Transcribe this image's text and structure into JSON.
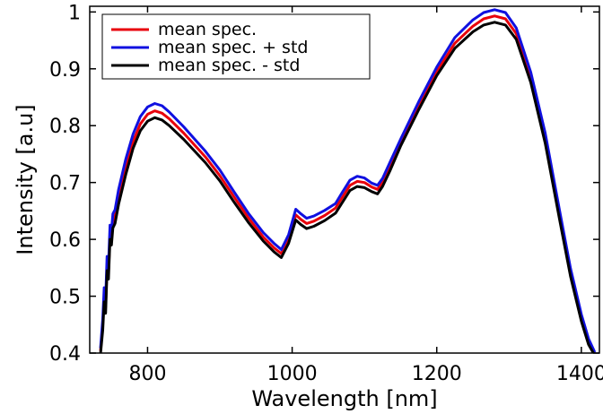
{
  "chart_data": {
    "type": "line",
    "title": "",
    "xlabel": "Wavelength [nm]",
    "ylabel": "Intensity [a.u]",
    "xlim": [
      720,
      1425
    ],
    "ylim": [
      0.4,
      1.01
    ],
    "xticks": [
      800,
      1000,
      1200,
      1400
    ],
    "xtick_labels": [
      "800",
      "1000",
      "1200",
      "1400"
    ],
    "yticks": [
      0.4,
      0.5,
      0.6,
      0.7,
      0.8,
      0.9,
      1.0
    ],
    "ytick_labels": [
      "0.4",
      "0.5",
      "0.6",
      "0.7",
      "0.8",
      "0.9",
      "1"
    ],
    "grid": false,
    "legend_position": "top-left",
    "x": [
      735,
      738,
      740,
      742,
      744,
      746,
      748,
      750,
      752,
      755,
      760,
      770,
      780,
      790,
      800,
      810,
      820,
      830,
      850,
      880,
      900,
      920,
      940,
      960,
      975,
      985,
      995,
      1005,
      1012,
      1020,
      1030,
      1045,
      1060,
      1070,
      1080,
      1090,
      1100,
      1110,
      1118,
      1125,
      1135,
      1150,
      1175,
      1200,
      1225,
      1250,
      1265,
      1280,
      1295,
      1310,
      1330,
      1350,
      1370,
      1385,
      1400,
      1410,
      1418
    ],
    "series": [
      {
        "name": "mean spec.",
        "color": "#e8000b",
        "values": [
          0.405,
          0.45,
          0.5,
          0.48,
          0.555,
          0.54,
          0.61,
          0.6,
          0.63,
          0.64,
          0.675,
          0.728,
          0.772,
          0.803,
          0.82,
          0.826,
          0.822,
          0.812,
          0.787,
          0.745,
          0.712,
          0.674,
          0.637,
          0.604,
          0.585,
          0.575,
          0.6,
          0.643,
          0.635,
          0.628,
          0.632,
          0.642,
          0.655,
          0.675,
          0.695,
          0.702,
          0.7,
          0.692,
          0.688,
          0.7,
          0.728,
          0.77,
          0.835,
          0.895,
          0.945,
          0.975,
          0.988,
          0.993,
          0.988,
          0.962,
          0.885,
          0.778,
          0.642,
          0.542,
          0.462,
          0.42,
          0.4
        ]
      },
      {
        "name": "mean spec. + std",
        "color": "#1010e0",
        "values": [
          0.41,
          0.46,
          0.515,
          0.495,
          0.57,
          0.555,
          0.625,
          0.615,
          0.645,
          0.652,
          0.688,
          0.742,
          0.785,
          0.816,
          0.833,
          0.839,
          0.835,
          0.824,
          0.798,
          0.755,
          0.722,
          0.683,
          0.645,
          0.612,
          0.593,
          0.582,
          0.608,
          0.653,
          0.645,
          0.637,
          0.641,
          0.651,
          0.663,
          0.684,
          0.704,
          0.711,
          0.708,
          0.699,
          0.695,
          0.707,
          0.735,
          0.776,
          0.842,
          0.903,
          0.955,
          0.986,
          0.999,
          1.004,
          0.999,
          0.972,
          0.894,
          0.787,
          0.65,
          0.549,
          0.468,
          0.425,
          0.403
        ]
      },
      {
        "name": "mean spec. - std",
        "color": "#000000",
        "values": [
          0.4,
          0.44,
          0.49,
          0.47,
          0.545,
          0.53,
          0.6,
          0.59,
          0.62,
          0.628,
          0.662,
          0.715,
          0.76,
          0.791,
          0.808,
          0.814,
          0.81,
          0.8,
          0.776,
          0.735,
          0.703,
          0.665,
          0.629,
          0.597,
          0.578,
          0.568,
          0.593,
          0.634,
          0.626,
          0.619,
          0.623,
          0.633,
          0.646,
          0.666,
          0.686,
          0.693,
          0.691,
          0.684,
          0.68,
          0.693,
          0.72,
          0.764,
          0.828,
          0.888,
          0.936,
          0.965,
          0.977,
          0.982,
          0.977,
          0.952,
          0.876,
          0.769,
          0.634,
          0.535,
          0.456,
          0.415,
          0.397
        ]
      }
    ]
  }
}
